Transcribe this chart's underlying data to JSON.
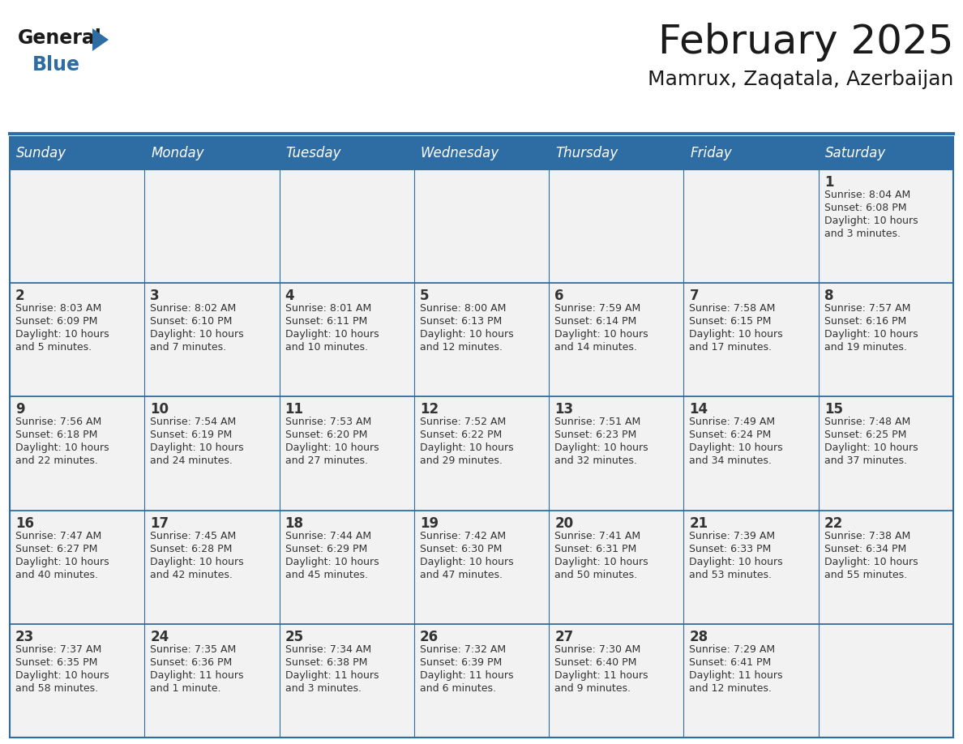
{
  "title": "February 2025",
  "subtitle": "Mamrux, Zaqatala, Azerbaijan",
  "header_bg": "#2E6DA4",
  "header_text": "#FFFFFF",
  "cell_bg": "#F2F2F2",
  "border_color": "#2E6DA4",
  "text_color": "#333333",
  "logo_general_color": "#1a1a1a",
  "logo_blue_color": "#2E6DA4",
  "days_of_week": [
    "Sunday",
    "Monday",
    "Tuesday",
    "Wednesday",
    "Thursday",
    "Friday",
    "Saturday"
  ],
  "title_fontsize": 36,
  "subtitle_fontsize": 18,
  "dayname_fontsize": 12,
  "day_num_fontsize": 12,
  "cell_text_fontsize": 9,
  "logo_fontsize": 17,
  "calendar_data": [
    [
      null,
      null,
      null,
      null,
      null,
      null,
      {
        "day": "1",
        "sunrise": "8:04 AM",
        "sunset": "6:08 PM",
        "daylight1": "Daylight: 10 hours",
        "daylight2": "and 3 minutes."
      }
    ],
    [
      {
        "day": "2",
        "sunrise": "8:03 AM",
        "sunset": "6:09 PM",
        "daylight1": "Daylight: 10 hours",
        "daylight2": "and 5 minutes."
      },
      {
        "day": "3",
        "sunrise": "8:02 AM",
        "sunset": "6:10 PM",
        "daylight1": "Daylight: 10 hours",
        "daylight2": "and 7 minutes."
      },
      {
        "day": "4",
        "sunrise": "8:01 AM",
        "sunset": "6:11 PM",
        "daylight1": "Daylight: 10 hours",
        "daylight2": "and 10 minutes."
      },
      {
        "day": "5",
        "sunrise": "8:00 AM",
        "sunset": "6:13 PM",
        "daylight1": "Daylight: 10 hours",
        "daylight2": "and 12 minutes."
      },
      {
        "day": "6",
        "sunrise": "7:59 AM",
        "sunset": "6:14 PM",
        "daylight1": "Daylight: 10 hours",
        "daylight2": "and 14 minutes."
      },
      {
        "day": "7",
        "sunrise": "7:58 AM",
        "sunset": "6:15 PM",
        "daylight1": "Daylight: 10 hours",
        "daylight2": "and 17 minutes."
      },
      {
        "day": "8",
        "sunrise": "7:57 AM",
        "sunset": "6:16 PM",
        "daylight1": "Daylight: 10 hours",
        "daylight2": "and 19 minutes."
      }
    ],
    [
      {
        "day": "9",
        "sunrise": "7:56 AM",
        "sunset": "6:18 PM",
        "daylight1": "Daylight: 10 hours",
        "daylight2": "and 22 minutes."
      },
      {
        "day": "10",
        "sunrise": "7:54 AM",
        "sunset": "6:19 PM",
        "daylight1": "Daylight: 10 hours",
        "daylight2": "and 24 minutes."
      },
      {
        "day": "11",
        "sunrise": "7:53 AM",
        "sunset": "6:20 PM",
        "daylight1": "Daylight: 10 hours",
        "daylight2": "and 27 minutes."
      },
      {
        "day": "12",
        "sunrise": "7:52 AM",
        "sunset": "6:22 PM",
        "daylight1": "Daylight: 10 hours",
        "daylight2": "and 29 minutes."
      },
      {
        "day": "13",
        "sunrise": "7:51 AM",
        "sunset": "6:23 PM",
        "daylight1": "Daylight: 10 hours",
        "daylight2": "and 32 minutes."
      },
      {
        "day": "14",
        "sunrise": "7:49 AM",
        "sunset": "6:24 PM",
        "daylight1": "Daylight: 10 hours",
        "daylight2": "and 34 minutes."
      },
      {
        "day": "15",
        "sunrise": "7:48 AM",
        "sunset": "6:25 PM",
        "daylight1": "Daylight: 10 hours",
        "daylight2": "and 37 minutes."
      }
    ],
    [
      {
        "day": "16",
        "sunrise": "7:47 AM",
        "sunset": "6:27 PM",
        "daylight1": "Daylight: 10 hours",
        "daylight2": "and 40 minutes."
      },
      {
        "day": "17",
        "sunrise": "7:45 AM",
        "sunset": "6:28 PM",
        "daylight1": "Daylight: 10 hours",
        "daylight2": "and 42 minutes."
      },
      {
        "day": "18",
        "sunrise": "7:44 AM",
        "sunset": "6:29 PM",
        "daylight1": "Daylight: 10 hours",
        "daylight2": "and 45 minutes."
      },
      {
        "day": "19",
        "sunrise": "7:42 AM",
        "sunset": "6:30 PM",
        "daylight1": "Daylight: 10 hours",
        "daylight2": "and 47 minutes."
      },
      {
        "day": "20",
        "sunrise": "7:41 AM",
        "sunset": "6:31 PM",
        "daylight1": "Daylight: 10 hours",
        "daylight2": "and 50 minutes."
      },
      {
        "day": "21",
        "sunrise": "7:39 AM",
        "sunset": "6:33 PM",
        "daylight1": "Daylight: 10 hours",
        "daylight2": "and 53 minutes."
      },
      {
        "day": "22",
        "sunrise": "7:38 AM",
        "sunset": "6:34 PM",
        "daylight1": "Daylight: 10 hours",
        "daylight2": "and 55 minutes."
      }
    ],
    [
      {
        "day": "23",
        "sunrise": "7:37 AM",
        "sunset": "6:35 PM",
        "daylight1": "Daylight: 10 hours",
        "daylight2": "and 58 minutes."
      },
      {
        "day": "24",
        "sunrise": "7:35 AM",
        "sunset": "6:36 PM",
        "daylight1": "Daylight: 11 hours",
        "daylight2": "and 1 minute."
      },
      {
        "day": "25",
        "sunrise": "7:34 AM",
        "sunset": "6:38 PM",
        "daylight1": "Daylight: 11 hours",
        "daylight2": "and 3 minutes."
      },
      {
        "day": "26",
        "sunrise": "7:32 AM",
        "sunset": "6:39 PM",
        "daylight1": "Daylight: 11 hours",
        "daylight2": "and 6 minutes."
      },
      {
        "day": "27",
        "sunrise": "7:30 AM",
        "sunset": "6:40 PM",
        "daylight1": "Daylight: 11 hours",
        "daylight2": "and 9 minutes."
      },
      {
        "day": "28",
        "sunrise": "7:29 AM",
        "sunset": "6:41 PM",
        "daylight1": "Daylight: 11 hours",
        "daylight2": "and 12 minutes."
      },
      null
    ]
  ]
}
